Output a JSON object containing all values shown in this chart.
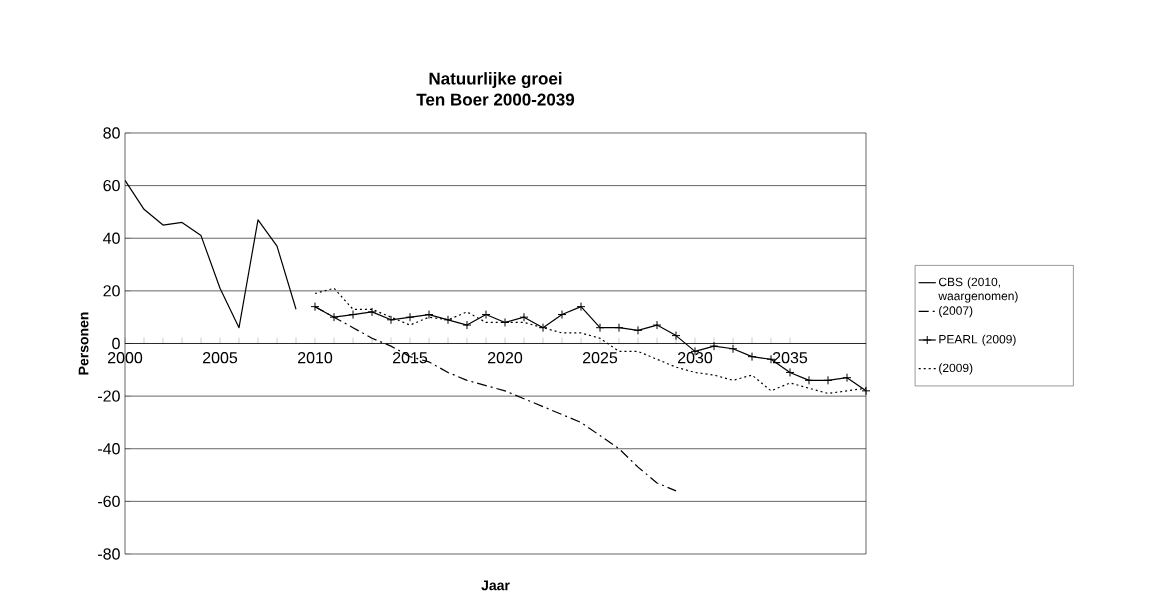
{
  "chart_data": {
    "type": "line",
    "title": "Natuurlijke groei",
    "subtitle": "Ten Boer 2000-2039",
    "xlabel": "Jaar",
    "ylabel": "Personen",
    "xlim": [
      2000,
      2039
    ],
    "xticks": [
      2000,
      2005,
      2010,
      2015,
      2020,
      2025,
      2030,
      2035
    ],
    "ylim": [
      -80,
      80
    ],
    "yticks": [
      -80,
      -60,
      -40,
      -20,
      0,
      20,
      40,
      60,
      80
    ],
    "grid": "y",
    "legend": "right",
    "series": [
      {
        "name": "CBS (2010, waargenomen)",
        "color": "#000000",
        "line_style": "solid",
        "x": [
          2000,
          2001,
          2002,
          2003,
          2004,
          2005,
          2006,
          2007,
          2008,
          2009
        ],
        "values": [
          62,
          51,
          45,
          46,
          41,
          21,
          6,
          47,
          37,
          13
        ]
      },
      {
        "name": "(2007)",
        "color": "#000000",
        "line_style": "dashdot",
        "x": [
          2010,
          2011,
          2012,
          2013,
          2014,
          2015,
          2016,
          2017,
          2018,
          2019,
          2020,
          2021,
          2022,
          2023,
          2024,
          2025,
          2026,
          2027,
          2028,
          2029
        ],
        "values": [
          14,
          10,
          6,
          2,
          -1,
          -5,
          -7,
          -11,
          -14,
          -16,
          -18,
          -21,
          -24,
          -27,
          -30,
          -35,
          -40,
          -47,
          -53,
          -56
        ]
      },
      {
        "name": "PEARL (2009)",
        "color": "#000000",
        "line_style": "solid",
        "marker": "cross",
        "x": [
          2010,
          2011,
          2012,
          2013,
          2014,
          2015,
          2016,
          2017,
          2018,
          2019,
          2020,
          2021,
          2022,
          2023,
          2024,
          2025,
          2026,
          2027,
          2028,
          2029,
          2030,
          2031,
          2032,
          2033,
          2034,
          2035,
          2036,
          2037,
          2038,
          2039
        ],
        "values": [
          14,
          10,
          11,
          12,
          9,
          10,
          11,
          9,
          7,
          11,
          8,
          10,
          6,
          11,
          14,
          6,
          6,
          5,
          7,
          3,
          -3,
          -1,
          -2,
          -5,
          -6,
          -11,
          -14,
          -14,
          -13,
          -18
        ]
      },
      {
        "name": "(2009)",
        "color": "#000000",
        "line_style": "dotted",
        "x": [
          2010,
          2011,
          2012,
          2013,
          2014,
          2015,
          2016,
          2017,
          2018,
          2019,
          2020,
          2021,
          2022,
          2023,
          2024,
          2025,
          2026,
          2027,
          2028,
          2029,
          2030,
          2031,
          2032,
          2033,
          2034,
          2035,
          2036,
          2037,
          2038,
          2039
        ],
        "values": [
          19,
          21,
          13,
          13,
          10,
          7,
          10,
          9,
          12,
          8,
          8,
          8,
          6,
          4,
          4,
          2,
          -3,
          -3,
          -6,
          -9,
          -11,
          -12,
          -14,
          -12,
          -18,
          -15,
          -17,
          -19,
          -18,
          -17
        ]
      }
    ]
  }
}
